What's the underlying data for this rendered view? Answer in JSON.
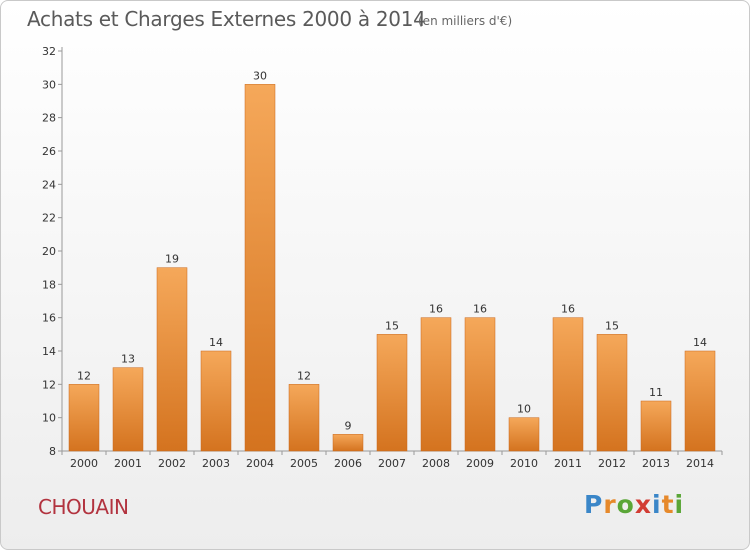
{
  "chart_data": {
    "type": "bar",
    "title": "Achats et Charges Externes 2000 à 2014",
    "subtitle": "(en milliers d'€)",
    "categories": [
      "2000",
      "2001",
      "2002",
      "2003",
      "2004",
      "2005",
      "2006",
      "2007",
      "2008",
      "2009",
      "2010",
      "2011",
      "2012",
      "2013",
      "2014"
    ],
    "values": [
      12,
      13,
      19,
      14,
      30,
      12,
      9,
      15,
      16,
      16,
      10,
      16,
      15,
      11,
      14
    ],
    "ylim": [
      8,
      32
    ],
    "yticks": [
      8,
      10,
      12,
      14,
      16,
      18,
      20,
      22,
      24,
      26,
      28,
      30,
      32
    ],
    "grid": false,
    "bar_color_top": "#f5a85a",
    "bar_color_bottom": "#d4731f"
  },
  "footer": {
    "commune": "CHOUAIN",
    "logo": [
      "P",
      "r",
      "o",
      "x",
      "i",
      "t",
      "i"
    ]
  }
}
